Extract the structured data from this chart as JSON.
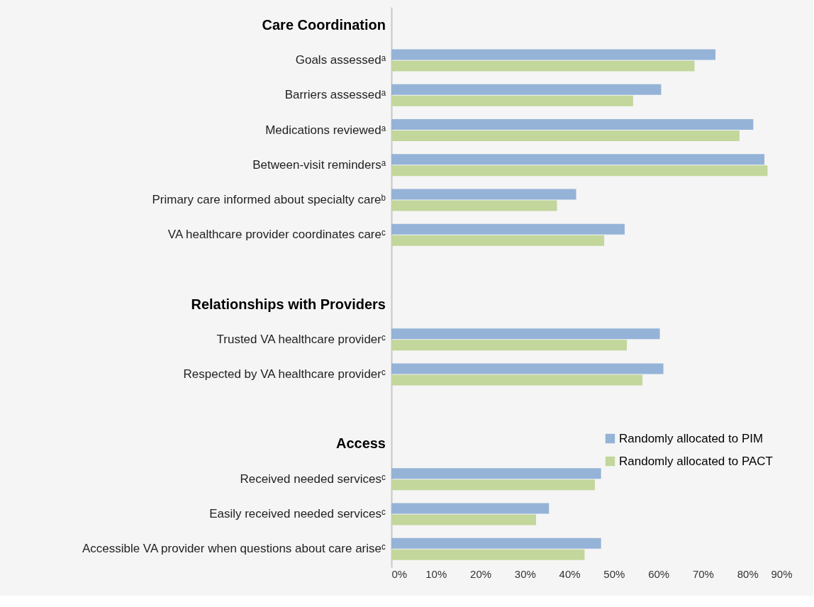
{
  "chart_data": {
    "type": "bar",
    "orientation": "horizontal",
    "categories": [
      "Care Coordination",
      "Goals assessedᵃ",
      "Barriers assessedᵃ",
      "Medications reviewedᵃ",
      "Between-visit remindersᵃ",
      "Primary care informed about specialty careᵇ",
      "VA healthcare provider  coordinates careᶜ",
      null,
      "Relationships with Providers",
      "Trusted VA healthcare providerᶜ",
      "Respected by VA healthcare providerᶜ",
      null,
      "Access",
      "Received needed servicesᶜ",
      "Easily received needed servicesᶜ",
      "Accessible VA provider when questions about care ariseᶜ"
    ],
    "series": [
      {
        "name": "Randomly allocated to PIM",
        "color": "#95b3d7",
        "values": [
          null,
          72.8,
          60.6,
          81.3,
          83.8,
          41.5,
          52.4,
          null,
          null,
          60.3,
          61.1,
          null,
          null,
          47.1,
          35.4,
          47.1
        ]
      },
      {
        "name": "Randomly allocated to PACT",
        "color": "#c3d69b",
        "values": [
          null,
          68.1,
          54.3,
          78.2,
          84.5,
          37.2,
          47.8,
          null,
          null,
          52.9,
          56.4,
          null,
          null,
          45.7,
          32.5,
          43.4
        ]
      }
    ],
    "xlim": [
      0,
      90
    ],
    "xticks": [
      {
        "value": 0,
        "label": "0%"
      },
      {
        "value": 10,
        "label": "10%"
      },
      {
        "value": 20,
        "label": "20%"
      },
      {
        "value": 30,
        "label": "30%"
      },
      {
        "value": 40,
        "label": "40%"
      },
      {
        "value": 50,
        "label": "50%"
      },
      {
        "value": 60,
        "label": "60%"
      },
      {
        "value": 70,
        "label": "70%"
      },
      {
        "value": 80,
        "label": "80%"
      },
      {
        "value": 90,
        "label": "90%"
      }
    ],
    "grid": false,
    "legend": "bottom right"
  }
}
